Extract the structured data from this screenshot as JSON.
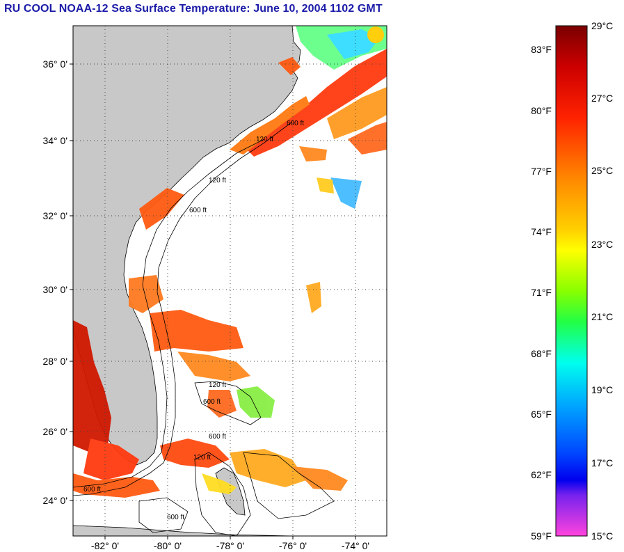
{
  "title": "RU COOL  NOAA-12  Sea Surface Temperature:  June 10, 2004 1102 GMT",
  "map": {
    "lat_labels": [
      "36° 0'",
      "34° 0'",
      "32° 0'",
      "30° 0'",
      "28° 0'",
      "26° 0'",
      "24° 0'"
    ],
    "lon_labels": [
      "-82° 0'",
      "-80° 0'",
      "-78° 0'",
      "-76° 0'",
      "-74° 0'"
    ],
    "contour_labels": [
      "120 ft",
      "600 ft",
      "120 ft",
      "600 ft",
      "120 ft",
      "600 ft",
      "120 ft",
      "600 ft",
      "600 ft",
      "600 ft"
    ],
    "land_color": "#c8c8c8",
    "ocean_color": "#ffffff"
  },
  "colorbar": {
    "fahrenheit_labels": [
      "83°F",
      "80°F",
      "77°F",
      "74°F",
      "71°F",
      "68°F",
      "65°F",
      "62°F",
      "59°F"
    ],
    "celsius_labels": [
      "29°C",
      "27°C",
      "25°C",
      "23°C",
      "21°C",
      "19°C",
      "17°C",
      "15°C"
    ]
  }
}
